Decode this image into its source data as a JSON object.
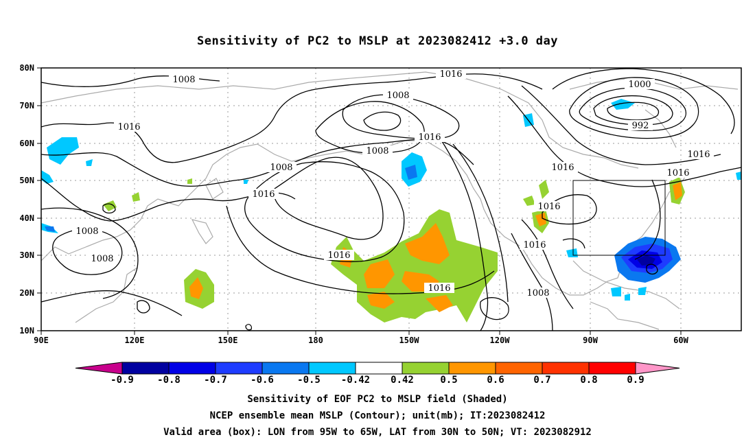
{
  "title": "Sensitivity of PC2 to MSLP at 2023082412 +3.0 day",
  "map": {
    "lat_labels": [
      "80N",
      "70N",
      "60N",
      "50N",
      "40N",
      "30N",
      "20N",
      "10N"
    ],
    "lon_labels": [
      "90E",
      "120E",
      "150E",
      "180",
      "150W",
      "120W",
      "90W",
      "60W"
    ],
    "contour_labels": [
      "1008",
      "1016",
      "1008",
      "1016",
      "1000",
      "992",
      "1016",
      "1008",
      "1016",
      "1008",
      "1016",
      "1016",
      "1016",
      "1016",
      "1016",
      "1008",
      "1008",
      "1008",
      "1016",
      "1008"
    ],
    "valid_box": {
      "lon_range": [
        "95W",
        "65W"
      ],
      "lat_range": [
        "30N",
        "50N"
      ]
    }
  },
  "colorbar": {
    "colors": [
      "#c8008c",
      "#0000a0",
      "#0000e6",
      "#1e3cff",
      "#0a78f0",
      "#00c8ff",
      "#ffffff",
      "#96d232",
      "#ff9600",
      "#ff6400",
      "#ff3200",
      "#ff0000",
      "#ff96c8"
    ],
    "labels": [
      "-0.9",
      "-0.8",
      "-0.7",
      "-0.6",
      "-0.5",
      "-0.42",
      "0.42",
      "0.5",
      "0.6",
      "0.7",
      "0.8",
      "0.9"
    ]
  },
  "captions": {
    "line1": "Sensitivity of EOF PC2 to MSLP field (Shaded)",
    "line2": "NCEP ensemble mean MSLP (Contour); unit(mb); IT:2023082412",
    "line3": "Valid area (box): LON from 95W to 65W, LAT from 30N to 50N; VT: 2023082912"
  }
}
